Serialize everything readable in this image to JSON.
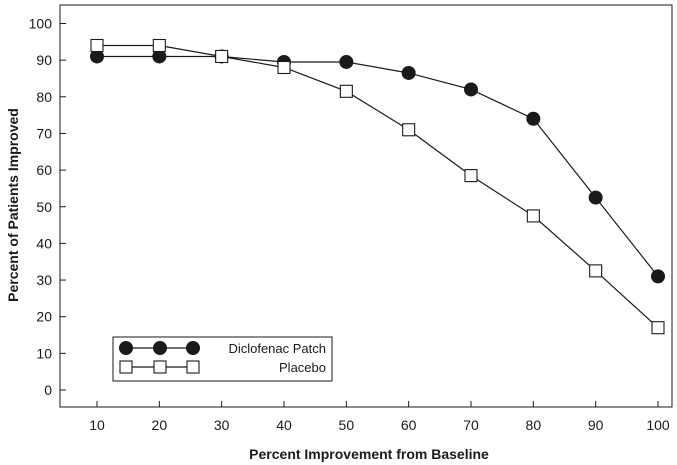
{
  "chart_data": {
    "type": "line",
    "xlabel": "Percent Improvement from Baseline",
    "ylabel": "Percent of Patients Improved",
    "x": [
      10,
      20,
      30,
      40,
      50,
      60,
      70,
      80,
      90,
      100
    ],
    "xlim": [
      10,
      100
    ],
    "ylim": [
      0,
      100
    ],
    "xticks": [
      "10",
      "20",
      "30",
      "40",
      "50",
      "60",
      "70",
      "80",
      "90",
      "100"
    ],
    "yticks": [
      "0",
      "10",
      "20",
      "30",
      "40",
      "50",
      "60",
      "70",
      "80",
      "90",
      "100"
    ],
    "grid": false,
    "legend_position": "bottom-left",
    "series": [
      {
        "name": "Diclofenac Patch",
        "marker": "filled-circle",
        "color": "#1a1a1a",
        "values": [
          91,
          91,
          91,
          89.5,
          89.5,
          86.5,
          82,
          74,
          52.5,
          31
        ]
      },
      {
        "name": "Placebo",
        "marker": "open-square",
        "color": "#1a1a1a",
        "values": [
          94,
          94,
          91,
          88,
          81.5,
          71,
          58.5,
          47.5,
          32.5,
          17
        ]
      }
    ]
  }
}
